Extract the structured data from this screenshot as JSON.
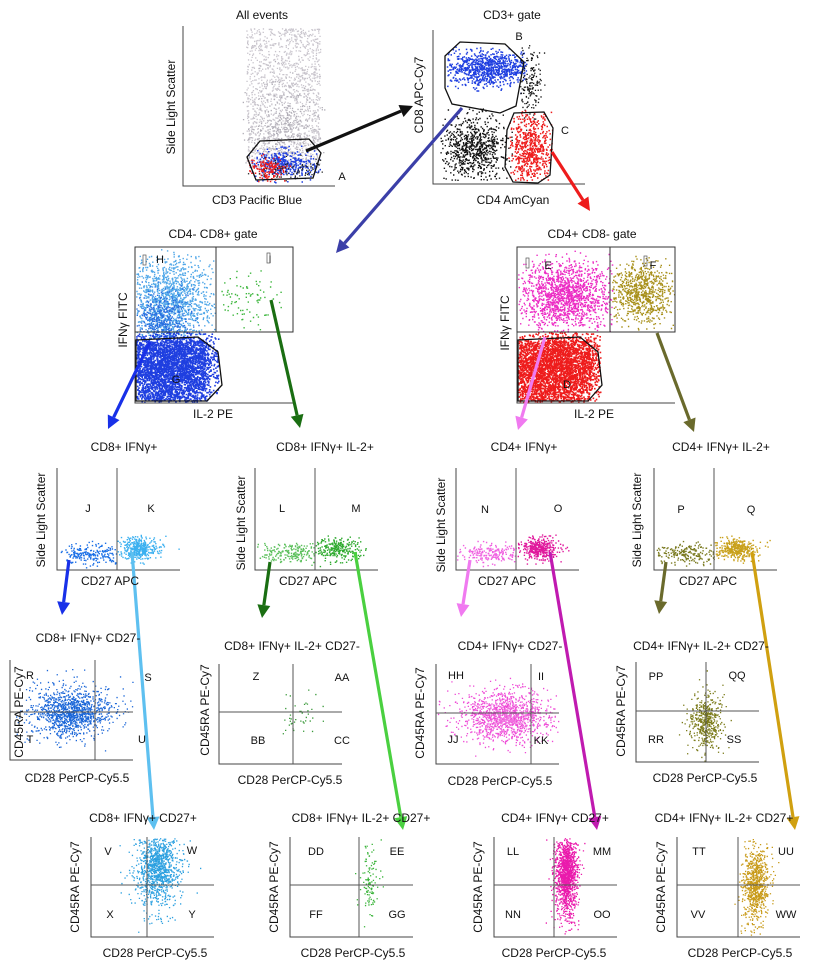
{
  "panels": [
    {
      "id": "all",
      "title": "All events",
      "xlabel": "CD3 Pacific Blue",
      "ylabel": "Side Light Scatter",
      "labels": [
        "A"
      ]
    },
    {
      "id": "cd3",
      "title": "CD3+ gate",
      "xlabel": "CD4 AmCyan",
      "ylabel": "CD8 APC-Cy7",
      "labels": [
        "B",
        "C"
      ]
    },
    {
      "id": "cd8gate",
      "title": "CD4- CD8+ gate",
      "xlabel": "IL-2 PE",
      "ylabel": "IFNγ FITC",
      "labels": [
        "H",
        "I",
        "G"
      ]
    },
    {
      "id": "cd4gate",
      "title": "CD4+ CD8- gate",
      "xlabel": "IL-2 PE",
      "ylabel": "IFNγ FITC",
      "labels": [
        "E",
        "F",
        "D"
      ]
    },
    {
      "id": "p8g",
      "title": "CD8+ IFNγ+",
      "xlabel": "CD27 APC",
      "ylabel": "Side Light Scatter",
      "labels": [
        "J",
        "K"
      ]
    },
    {
      "id": "p8gi",
      "title": "CD8+ IFNγ+ IL-2+",
      "xlabel": "CD27 APC",
      "ylabel": "Side Light Scatter",
      "labels": [
        "L",
        "M"
      ]
    },
    {
      "id": "p4g",
      "title": "CD4+ IFNγ+",
      "xlabel": "CD27 APC",
      "ylabel": "Side Light Scatter",
      "labels": [
        "N",
        "O"
      ]
    },
    {
      "id": "p4gi",
      "title": "CD4+ IFNγ+ IL-2+",
      "xlabel": "CD27 APC",
      "ylabel": "Side Light Scatter",
      "labels": [
        "P",
        "Q"
      ]
    },
    {
      "id": "q1",
      "title": "CD8+ IFNγ+ CD27-",
      "xlabel": "CD28 PerCP-Cy5.5",
      "ylabel": "CD45RA PE-Cy7",
      "labels": [
        "R",
        "S",
        "T",
        "U"
      ]
    },
    {
      "id": "q2",
      "title": "CD8+ IFNγ+ IL-2+ CD27-",
      "xlabel": "CD28 PerCP-Cy5.5",
      "ylabel": "CD45RA PE-Cy7",
      "labels": [
        "Z",
        "AA",
        "BB",
        "CC"
      ]
    },
    {
      "id": "q3",
      "title": "CD4+ IFNγ+ CD27-",
      "xlabel": "CD28 PerCP-Cy5.5",
      "ylabel": "CD45RA PE-Cy7",
      "labels": [
        "HH",
        "II",
        "JJ",
        "KK"
      ]
    },
    {
      "id": "q4",
      "title": "CD4+ IFNγ+ IL-2+ CD27-",
      "xlabel": "CD28 PerCP-Cy5.5",
      "ylabel": "CD45RA PE-Cy7",
      "labels": [
        "PP",
        "QQ",
        "RR",
        "SS"
      ]
    },
    {
      "id": "q5",
      "title": "CD8+ IFNγ+ CD27+",
      "xlabel": "CD28 PerCP-Cy5.5",
      "ylabel": "CD45RA PE-Cy7",
      "labels": [
        "V",
        "W",
        "X",
        "Y"
      ]
    },
    {
      "id": "q6",
      "title": "CD8+ IFNγ+ IL-2+ CD27+",
      "xlabel": "CD28 PerCP-Cy5.5",
      "ylabel": "CD45RA PE-Cy7",
      "labels": [
        "DD",
        "EE",
        "FF",
        "GG"
      ]
    },
    {
      "id": "q7",
      "title": "CD4+ IFNγ+ CD27+",
      "xlabel": "CD28 PerCP-Cy5.5",
      "ylabel": "CD45RA PE-Cy7",
      "labels": [
        "LL",
        "MM",
        "NN",
        "OO"
      ]
    },
    {
      "id": "q8",
      "title": "CD4+ IFNγ+ IL-2+ CD27+",
      "xlabel": "CD28 PerCP-Cy5.5",
      "ylabel": "CD45RA PE-Cy7",
      "labels": [
        "TT",
        "UU",
        "VV",
        "WW"
      ]
    }
  ],
  "colors": {
    "events": "#c8c4cc",
    "cd8": "#1f3fe0",
    "cd4": "#ee1c1c",
    "black": "#111111",
    "cd8_ifng": "#2c8ee8",
    "cd8_ifng_il2": "#3cb63c",
    "cd4_ifng": "#ec2cc4",
    "cd4_ifng_il2": "#a8901a",
    "arrow_black": "#111111",
    "arrow_navy": "#3b3fa8",
    "arrow_red": "#ee1c1c",
    "arrow_blue": "#1830e8",
    "arrow_dkgreen": "#1a6e12",
    "arrow_pink": "#f07af0",
    "arrow_olive": "#6a6a2c",
    "arrow_lblue": "#5ec0f0",
    "arrow_lgreen": "#4ad040",
    "arrow_magenta": "#c01ab0",
    "arrow_gold": "#d0a010"
  }
}
